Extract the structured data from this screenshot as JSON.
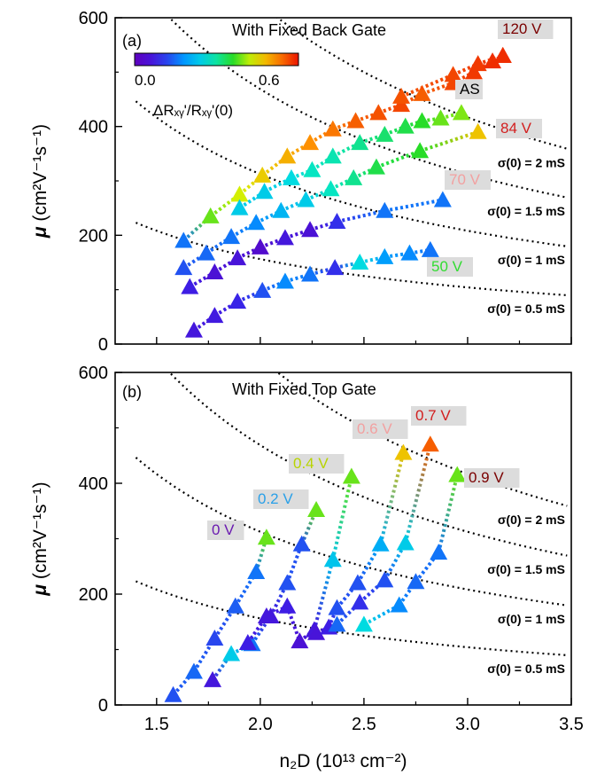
{
  "chart_data": [
    {
      "type": "scatter",
      "panel_label": "(a)",
      "title": "With Fixed Back Gate",
      "ylabel": "μ (cm²V⁻¹s⁻¹)",
      "xlim": [
        1.3,
        3.5
      ],
      "ylim": [
        0,
        600
      ],
      "yticks": [
        0,
        200,
        400,
        600
      ],
      "colorbar": {
        "min_label": "0.0",
        "max_label": "0.6",
        "label": "ΔRₓᵧ'/Rₓᵧ'(0)",
        "range": [
          0,
          0.7
        ]
      },
      "contours": [
        {
          "label": "σ(0) = 2 mS",
          "sigma_mS": 2
        },
        {
          "label": "σ(0) = 1.5 mS",
          "sigma_mS": 1.5
        },
        {
          "label": "σ(0) = 1 mS",
          "sigma_mS": 1
        },
        {
          "label": "σ(0) = 0.5 mS",
          "sigma_mS": 0.5
        }
      ],
      "series": [
        {
          "name": "50 V",
          "label_color": "#32dc32",
          "points": [
            [
              1.68,
              25,
              0.08
            ],
            [
              1.78,
              52,
              0.09
            ],
            [
              1.89,
              78,
              0.11
            ],
            [
              2.01,
              98,
              0.15
            ],
            [
              2.12,
              115,
              0.2
            ],
            [
              2.24,
              128,
              0.18
            ],
            [
              2.36,
              140,
              0.12
            ],
            [
              2.48,
              150,
              0.3
            ],
            [
              2.6,
              160,
              0.22
            ],
            [
              2.72,
              167,
              0.2
            ],
            [
              2.82,
              173,
              0.18
            ]
          ]
        },
        {
          "name": "",
          "label_color": "",
          "points": [
            [
              1.66,
              105,
              0.1
            ],
            [
              1.78,
              132,
              0.06
            ],
            [
              1.89,
              158,
              0.07
            ],
            [
              2.0,
              178,
              0.04
            ],
            [
              2.12,
              195,
              0.08
            ],
            [
              2.24,
              210,
              0.06
            ],
            [
              2.37,
              225,
              0.12
            ],
            [
              2.6,
              245,
              0.18
            ],
            [
              2.88,
              265,
              0.18
            ]
          ]
        },
        {
          "name": "70 V",
          "label_color": "#f2a0a0",
          "points": [
            [
              1.63,
              140,
              0.15
            ],
            [
              1.74,
              167,
              0.17
            ],
            [
              1.86,
              197,
              0.18
            ],
            [
              1.98,
              223,
              0.2
            ],
            [
              2.1,
              245,
              0.25
            ],
            [
              2.22,
              265,
              0.28
            ],
            [
              2.34,
              285,
              0.33
            ],
            [
              2.45,
              305,
              0.36
            ],
            [
              2.56,
              325,
              0.4
            ],
            [
              2.77,
              355,
              0.42
            ],
            [
              3.05,
              390,
              0.55
            ]
          ]
        },
        {
          "name": "AS",
          "label_color": "#000000",
          "points": [
            [
              1.63,
              190,
              0.18
            ],
            [
              1.76,
              235,
              0.45
            ],
            [
              1.9,
              275,
              0.5
            ],
            [
              2.01,
              310,
              0.54
            ],
            [
              2.13,
              345,
              0.57
            ],
            [
              2.24,
              370,
              0.6
            ],
            [
              2.35,
              395,
              0.62
            ],
            [
              2.46,
              410,
              0.64
            ],
            [
              2.57,
              425,
              0.65
            ],
            [
              2.68,
              440,
              0.66
            ],
            [
              2.78,
              460,
              0.64
            ],
            [
              2.93,
              480,
              0.66
            ],
            [
              3.03,
              500,
              0.67
            ],
            [
              3.12,
              520,
              0.68
            ],
            [
              3.17,
              530,
              0.68
            ]
          ]
        },
        {
          "name": "84 V",
          "label_color": "#d21e1e",
          "points": [
            [
              1.9,
              250,
              0.28
            ],
            [
              2.02,
              280,
              0.28
            ],
            [
              2.15,
              305,
              0.3
            ],
            [
              2.25,
              320,
              0.33
            ],
            [
              2.35,
              345,
              0.34
            ],
            [
              2.48,
              370,
              0.36
            ],
            [
              2.6,
              385,
              0.38
            ],
            [
              2.7,
              400,
              0.4
            ],
            [
              2.78,
              410,
              0.42
            ],
            [
              2.87,
              415,
              0.45
            ],
            [
              2.97,
              425,
              0.46
            ]
          ]
        },
        {
          "name": "120 V",
          "label_color": "#7a0000",
          "points": [
            [
              2.68,
              455,
              0.65
            ],
            [
              2.93,
              495,
              0.66
            ],
            [
              3.05,
              515,
              0.67
            ],
            [
              3.17,
              530,
              0.68
            ]
          ]
        }
      ],
      "annotations": [
        {
          "text": "120 V",
          "color": "#7a0000"
        },
        {
          "text": "AS",
          "color": "#000000"
        },
        {
          "text": "84 V",
          "color": "#d21e1e"
        },
        {
          "text": "70 V",
          "color": "#f2a0a0"
        },
        {
          "text": "50 V",
          "color": "#32dc32"
        }
      ]
    },
    {
      "type": "scatter",
      "panel_label": "(b)",
      "title": "With Fixed Top Gate",
      "xlabel": "n₂D (10¹³ cm⁻²)",
      "ylabel": "μ (cm²V⁻¹s⁻¹)",
      "xlim": [
        1.3,
        3.5
      ],
      "ylim": [
        0,
        600
      ],
      "xticks": [
        1.5,
        2.0,
        2.5,
        3.0,
        3.5
      ],
      "yticks": [
        0,
        200,
        400,
        600
      ],
      "contours": [
        {
          "label": "σ(0) = 2 mS",
          "sigma_mS": 2
        },
        {
          "label": "σ(0) = 1.5 mS",
          "sigma_mS": 1.5
        },
        {
          "label": "σ(0) = 1 mS",
          "sigma_mS": 1
        },
        {
          "label": "σ(0) = 0.5 mS",
          "sigma_mS": 0.5
        }
      ],
      "series": [
        {
          "name": "0 V",
          "label_color": "#6a1ab0",
          "points": [
            [
              1.58,
              18,
              0.15
            ],
            [
              1.68,
              60,
              0.17
            ],
            [
              1.78,
              120,
              0.14
            ],
            [
              1.88,
              178,
              0.16
            ],
            [
              1.98,
              240,
              0.18
            ],
            [
              2.03,
              302,
              0.45
            ]
          ]
        },
        {
          "name": "0.2 V",
          "label_color": "#2aa0e8",
          "points": [
            [
              1.77,
              45,
              0.08
            ],
            [
              1.86,
              92,
              0.28
            ],
            [
              1.96,
              110,
              0.18
            ],
            [
              2.05,
              160,
              0.08
            ],
            [
              2.13,
              220,
              0.15
            ],
            [
              2.2,
              290,
              0.15
            ],
            [
              2.27,
              352,
              0.45
            ]
          ]
        },
        {
          "name": "0.4 V",
          "label_color": "#b8d400",
          "points": [
            [
              1.94,
              112,
              0.1
            ],
            [
              2.03,
              160,
              0.08
            ],
            [
              2.13,
              178,
              0.1
            ],
            [
              2.19,
              115,
              0.06
            ],
            [
              2.26,
              135,
              0.08
            ],
            [
              2.35,
              262,
              0.27
            ],
            [
              2.44,
              412,
              0.45
            ]
          ]
        },
        {
          "name": "0.6 V",
          "label_color": "#f2a0a0",
          "points": [
            [
              2.27,
              130,
              0.07
            ],
            [
              2.33,
              140,
              0.1
            ],
            [
              2.37,
              175,
              0.15
            ],
            [
              2.47,
              220,
              0.15
            ],
            [
              2.58,
              290,
              0.24
            ],
            [
              2.69,
              455,
              0.55
            ]
          ]
        },
        {
          "name": "0.7 V",
          "label_color": "#d21e1e",
          "points": [
            [
              2.37,
              145,
              0.17
            ],
            [
              2.48,
              185,
              0.12
            ],
            [
              2.6,
              225,
              0.15
            ],
            [
              2.7,
              292,
              0.28
            ],
            [
              2.82,
              470,
              0.64
            ]
          ]
        },
        {
          "name": "0.9 V",
          "label_color": "#7a0000",
          "points": [
            [
              2.5,
              145,
              0.3
            ],
            [
              2.67,
              180,
              0.2
            ],
            [
              2.75,
              222,
              0.17
            ],
            [
              2.86,
              275,
              0.18
            ],
            [
              2.95,
              415,
              0.45
            ]
          ]
        }
      ],
      "annotations": [
        {
          "text": "0 V",
          "color": "#6a1ab0"
        },
        {
          "text": "0.2 V",
          "color": "#2aa0e8"
        },
        {
          "text": "0.4 V",
          "color": "#b8d400"
        },
        {
          "text": "0.6 V",
          "color": "#f2a0a0"
        },
        {
          "text": "0.7 V",
          "color": "#d21e1e"
        },
        {
          "text": "0.9 V",
          "color": "#7a0000"
        }
      ]
    }
  ]
}
